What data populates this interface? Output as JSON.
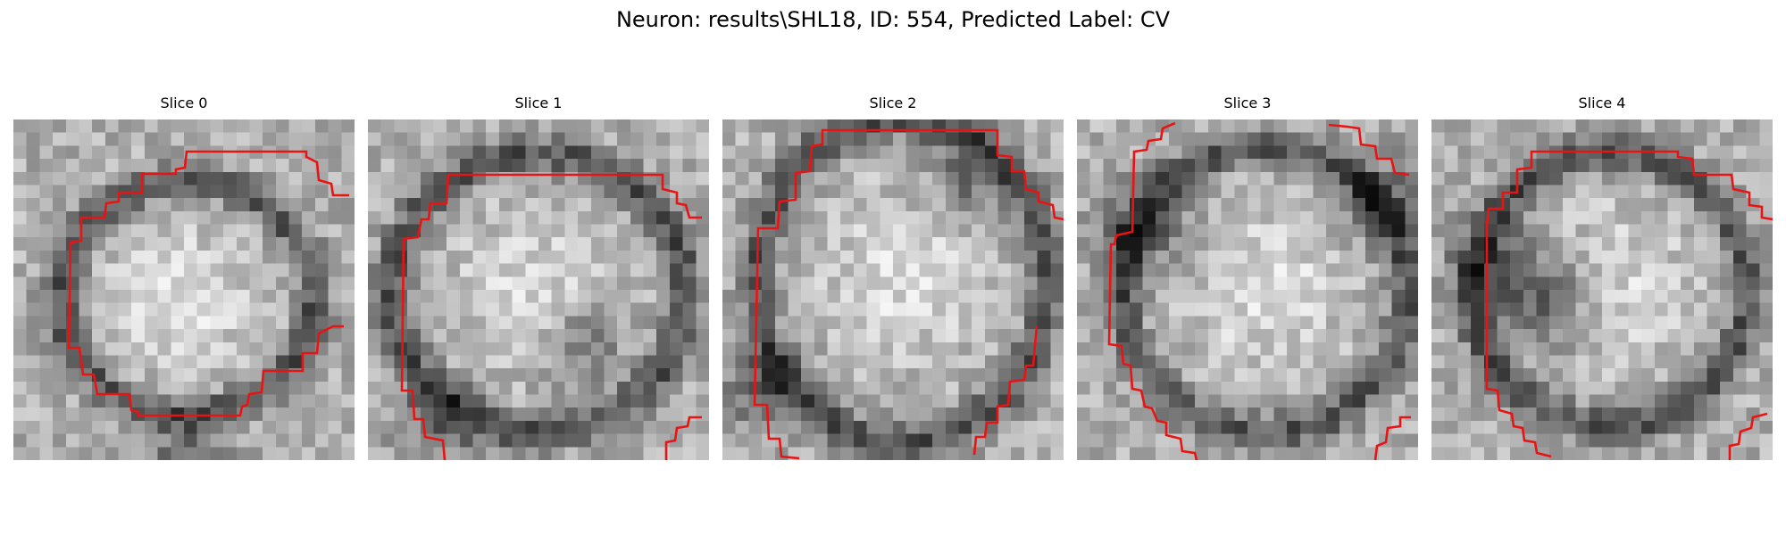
{
  "figure": {
    "title": "Neuron: results\\SHL18, ID: 554, Predicted Label: CV"
  },
  "colors": {
    "contour": "#e81414",
    "background": "#ffffff"
  },
  "slices": [
    {
      "title": "Slice 0"
    },
    {
      "title": "Slice 1"
    },
    {
      "title": "Slice 2"
    },
    {
      "title": "Slice 3"
    },
    {
      "title": "Slice 4"
    }
  ]
}
